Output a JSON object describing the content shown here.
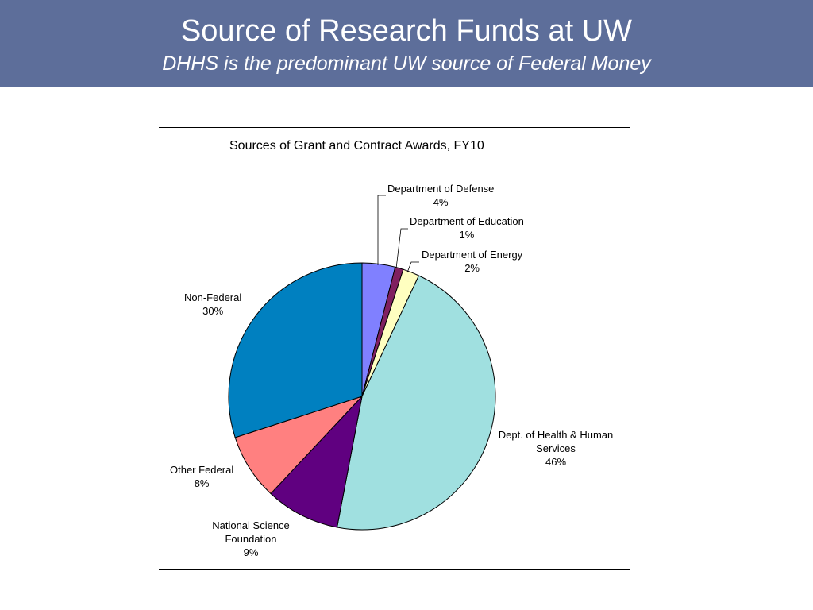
{
  "slide": {
    "title": "Source of Research Funds at UW",
    "subtitle": "DHHS is the predominant UW source of Federal Money",
    "header_color": "#5d6e9a"
  },
  "chart_data": {
    "type": "pie",
    "title": "Sources of Grant and Contract Awards, FY10",
    "start_angle_deg": 0,
    "direction": "clockwise",
    "slices": [
      {
        "name": "Department of Defense",
        "value": 4,
        "label": "4%",
        "color": "#8080ff"
      },
      {
        "name": "Department of Education",
        "value": 1,
        "label": "1%",
        "color": "#802060"
      },
      {
        "name": "Department of Energy",
        "value": 2,
        "label": "2%",
        "color": "#ffffc0"
      },
      {
        "name": "Dept. of Health & Human Services",
        "value": 46,
        "label": "46%",
        "color": "#a0e0e0"
      },
      {
        "name": "National Science Foundation",
        "value": 9,
        "label": "9%",
        "color": "#600080"
      },
      {
        "name": "Other Federal",
        "value": 8,
        "label": "8%",
        "color": "#ff8080"
      },
      {
        "name": "Non-Federal",
        "value": 30,
        "label": "30%",
        "color": "#0080c0"
      }
    ]
  }
}
